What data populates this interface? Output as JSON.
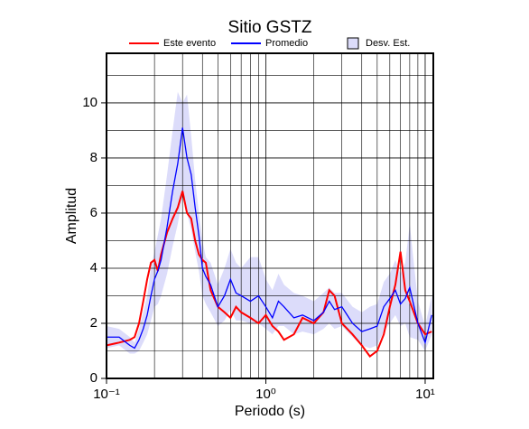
{
  "chart_data": {
    "type": "line",
    "title": "Sitio GSTZ",
    "xlabel": "Periodo (s)",
    "ylabel": "Amplitud",
    "xscale": "log",
    "grid": true,
    "legend": "top",
    "xlim": [
      0.1,
      11.25
    ],
    "ylim": [
      0,
      11.8
    ],
    "xticks": [
      {
        "value": 0.1,
        "label": "10⁻¹"
      },
      {
        "value": 1,
        "label": "10⁰"
      },
      {
        "value": 10,
        "label": "10¹"
      }
    ],
    "yticks": [
      0,
      2,
      4,
      6,
      8,
      10
    ],
    "xgrid_minor": [
      0.2,
      0.3,
      0.4,
      0.5,
      0.6,
      0.7,
      0.8,
      0.9,
      2,
      3,
      4,
      5,
      6,
      7,
      8,
      9
    ],
    "ygrid_minor": [
      1,
      3,
      5,
      7,
      9,
      11
    ],
    "x": [
      0.1,
      0.12,
      0.14,
      0.15,
      0.16,
      0.17,
      0.18,
      0.19,
      0.2,
      0.21,
      0.22,
      0.24,
      0.26,
      0.28,
      0.3,
      0.32,
      0.34,
      0.36,
      0.38,
      0.4,
      0.42,
      0.45,
      0.5,
      0.55,
      0.6,
      0.65,
      0.7,
      0.8,
      0.9,
      1.0,
      1.1,
      1.2,
      1.3,
      1.5,
      1.7,
      2.0,
      2.3,
      2.5,
      2.7,
      3.0,
      3.5,
      4.0,
      4.5,
      5.0,
      5.5,
      6.0,
      6.5,
      7.0,
      7.5,
      8.0,
      9.0,
      10,
      11
    ],
    "series": [
      {
        "name": "Este evento",
        "color": "#ff0000",
        "values": [
          1.2,
          1.3,
          1.4,
          1.5,
          2.0,
          2.8,
          3.6,
          4.2,
          4.3,
          3.9,
          4.5,
          5.3,
          5.8,
          6.2,
          6.8,
          6.0,
          5.8,
          5.0,
          4.5,
          4.3,
          4.2,
          3.2,
          2.6,
          2.4,
          2.2,
          2.6,
          2.4,
          2.2,
          2.0,
          2.3,
          1.9,
          1.7,
          1.4,
          1.6,
          2.2,
          2.0,
          2.4,
          3.2,
          3.0,
          2.0,
          1.6,
          1.2,
          0.8,
          1.0,
          1.6,
          2.6,
          3.4,
          4.6,
          3.2,
          2.8,
          2.0,
          1.6,
          1.7
        ]
      },
      {
        "name": "Promedio",
        "color": "#0000ff",
        "values": [
          1.5,
          1.5,
          1.2,
          1.1,
          1.4,
          1.8,
          2.3,
          3.0,
          3.6,
          3.9,
          4.3,
          5.5,
          6.8,
          7.8,
          9.1,
          8.0,
          7.4,
          6.2,
          5.2,
          4.0,
          3.7,
          3.4,
          2.6,
          3.0,
          3.6,
          3.1,
          3.0,
          2.8,
          3.0,
          2.6,
          2.2,
          2.8,
          2.6,
          2.2,
          2.3,
          2.1,
          2.4,
          2.8,
          2.5,
          2.6,
          2.0,
          1.7,
          1.8,
          1.9,
          2.6,
          2.9,
          3.2,
          2.7,
          2.9,
          3.3,
          2.0,
          1.3,
          2.3
        ]
      },
      {
        "name": "Desv. Est.",
        "color": "#dcdcfa",
        "upper": [
          1.9,
          1.8,
          1.5,
          1.3,
          1.8,
          2.4,
          3.0,
          4.0,
          4.6,
          5.2,
          5.8,
          7.4,
          9.0,
          10.4,
          10.0,
          10.3,
          8.8,
          7.2,
          6.0,
          5.0,
          4.4,
          4.2,
          3.4,
          4.0,
          4.7,
          4.2,
          4.0,
          4.4,
          4.4,
          3.6,
          3.2,
          3.8,
          3.4,
          3.1,
          3.0,
          2.8,
          3.1,
          3.3,
          3.1,
          3.1,
          2.6,
          2.4,
          2.6,
          2.7,
          3.5,
          3.8,
          4.3,
          3.8,
          4.2,
          5.6,
          2.8,
          1.9,
          3.0
        ],
        "lower": [
          1.1,
          1.2,
          0.9,
          0.9,
          1.0,
          1.3,
          1.6,
          2.1,
          2.6,
          2.7,
          3.0,
          3.8,
          4.8,
          5.6,
          6.6,
          6.0,
          5.4,
          4.6,
          3.9,
          3.0,
          2.7,
          2.4,
          1.9,
          2.1,
          2.5,
          2.1,
          2.1,
          2.0,
          2.0,
          1.8,
          1.6,
          1.9,
          1.9,
          1.6,
          1.7,
          1.6,
          1.8,
          2.0,
          1.8,
          1.9,
          1.5,
          1.2,
          1.1,
          1.2,
          1.7,
          2.0,
          2.3,
          1.9,
          2.0,
          1.5,
          1.4,
          1.0,
          1.6
        ]
      }
    ]
  }
}
